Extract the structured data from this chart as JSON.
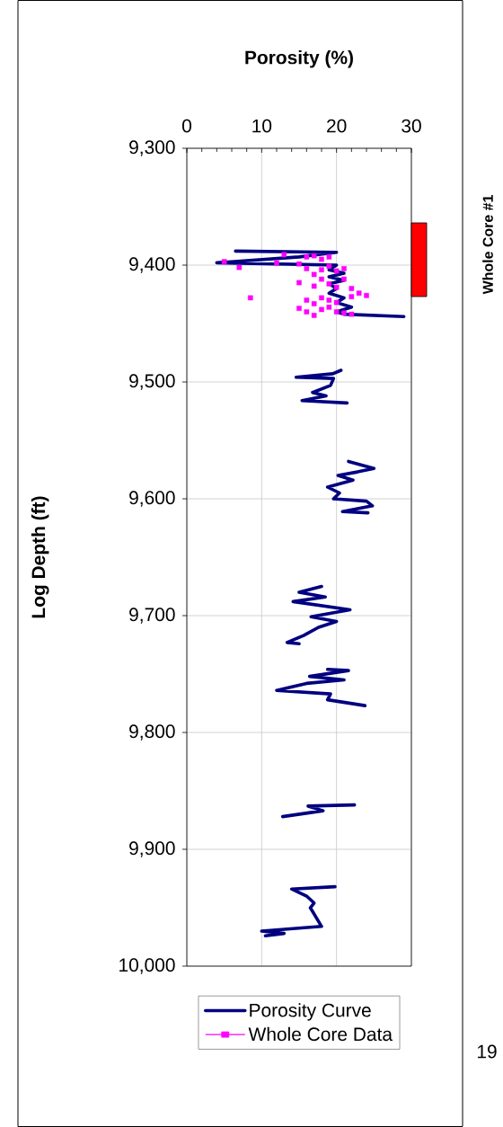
{
  "chart_data": {
    "type": "line",
    "xlabel": "Porosity (%)",
    "ylabel": "Log Depth (ft)",
    "xlim": [
      0,
      30
    ],
    "ylim": [
      10000,
      9300
    ],
    "xticks": [
      0,
      {
        "value": 2,
        "label": null
      },
      {
        "value": 4,
        "label": null
      },
      {
        "value": 6,
        "label": null
      },
      {
        "value": 8,
        "label": null
      },
      10,
      {
        "value": 12,
        "label": null
      },
      {
        "value": 14,
        "label": null
      },
      {
        "value": 16,
        "label": null
      },
      {
        "value": 18,
        "label": null
      },
      20,
      {
        "value": 22,
        "label": null
      },
      {
        "value": 24,
        "label": null
      },
      {
        "value": 26,
        "label": null
      },
      {
        "value": 28,
        "label": null
      },
      30
    ],
    "yticks": [
      {
        "value": 9300,
        "label": "9,300"
      },
      {
        "value": 9400,
        "label": "9,400"
      },
      {
        "value": 9500,
        "label": "9,500"
      },
      {
        "value": 9600,
        "label": "9,600"
      },
      {
        "value": 9700,
        "label": "9,700"
      },
      {
        "value": 9800,
        "label": "9,800"
      },
      {
        "value": 9900,
        "label": "9,900"
      },
      {
        "value": 10000,
        "label": "10,000"
      }
    ],
    "grid": true,
    "legend": "bottom",
    "series": [
      {
        "name": "Porosity Curve",
        "color": "#000080",
        "x": [
          6.5,
          20,
          15,
          4,
          20,
          19,
          21,
          19,
          21,
          19,
          20,
          19,
          21,
          20,
          22,
          20,
          21,
          29,
          null,
          20.6,
          19.5,
          14.6,
          19.6,
          19.2,
          16.8,
          18.6,
          15.4,
          21.4,
          null,
          21.6,
          25,
          22.8,
          20.2,
          22.2,
          18.8,
          20.4,
          19.6,
          24,
          24.8,
          20.8,
          24.2,
          null,
          18,
          15,
          18.5,
          14.2,
          21.8,
          16.6,
          20,
          17.6,
          15.6,
          13.4,
          15,
          null,
          18.8,
          21.6,
          16.4,
          21,
          16,
          12,
          19.2,
          18.8,
          23.8,
          null,
          22.4,
          16.2,
          18.2,
          12.8,
          null,
          19.8,
          14,
          16,
          17,
          16.5,
          18,
          10,
          13,
          10.5
        ],
        "values": [
          9388,
          9389,
          9393,
          9398,
          9400,
          9404,
          9407,
          9410,
          9413,
          9416,
          9420,
          9424,
          9428,
          9432,
          9436,
          9440,
          9442,
          9444,
          null,
          9490,
          9493,
          9496,
          9497,
          9503,
          9509,
          9512,
          9516,
          9518,
          null,
          9568,
          9574,
          9577,
          9580,
          9584,
          9590,
          9595,
          9600,
          9602,
          9606,
          9611,
          9612,
          null,
          9675,
          9680,
          9684,
          9688,
          9695,
          9701,
          9705,
          9710,
          9717,
          9723,
          9724,
          null,
          9746,
          9747,
          9752,
          9755,
          9758,
          9764,
          9767,
          9772,
          9777,
          null,
          9862,
          9863,
          9867,
          9872,
          null,
          9932,
          9934,
          9940,
          9946,
          9950,
          9966,
          9970,
          9972,
          9974
        ]
      },
      {
        "name": "Whole Core Data",
        "type": "scatter",
        "marker": "square",
        "color": "#ff00ff",
        "x": [
          5,
          7,
          8.5,
          12,
          13,
          15,
          16,
          17,
          18,
          19,
          16,
          17,
          18,
          19,
          20,
          21,
          15,
          17,
          18,
          19,
          20,
          21,
          22,
          23,
          24,
          22,
          16,
          17,
          18,
          19,
          20,
          15,
          16,
          18,
          19,
          20,
          21,
          22,
          17
        ],
        "values": [
          9397,
          9402,
          9428,
          9398,
          9391,
          9399,
          9393,
          9392,
          9395,
          9393,
          9403,
          9408,
          9404,
          9401,
          9405,
          9403,
          9415,
          9418,
          9412,
          9416,
          9419,
          9412,
          9420,
          9424,
          9426,
          9427,
          9430,
          9433,
          9428,
          9430,
          9432,
          9437,
          9440,
          9438,
          9436,
          9440,
          9441,
          9442,
          9443
        ]
      }
    ],
    "annotations": [
      "Whole Core #1",
      "19"
    ]
  }
}
